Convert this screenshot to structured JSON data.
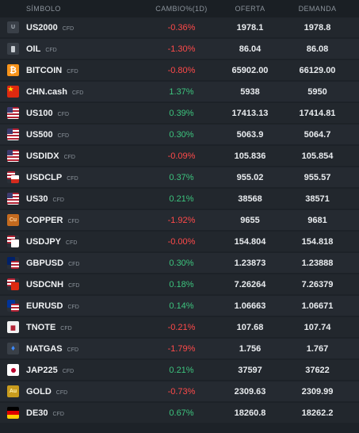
{
  "header": {
    "symbol": "SÍMBOLO",
    "change": "CAMBIO%(1D)",
    "bid": "OFERTA",
    "ask": "DEMANDA"
  },
  "rows": [
    {
      "symbol": "US2000",
      "tag": "CFD",
      "change": "-0.36%",
      "direction": "neg",
      "bid": "1978.1",
      "ask": "1978.8",
      "icon": "index-icon"
    },
    {
      "symbol": "OIL",
      "tag": "CFD",
      "change": "-1.30%",
      "direction": "neg",
      "bid": "86.04",
      "ask": "86.08",
      "icon": "oil-icon"
    },
    {
      "symbol": "BITCOIN",
      "tag": "CFD",
      "change": "-0.80%",
      "direction": "neg",
      "bid": "65902.00",
      "ask": "66129.00",
      "icon": "bitcoin-icon"
    },
    {
      "symbol": "CHN.cash",
      "tag": "CFD",
      "change": "1.37%",
      "direction": "pos",
      "bid": "5938",
      "ask": "5950",
      "icon": "china-flag-icon"
    },
    {
      "symbol": "US100",
      "tag": "CFD",
      "change": "0.39%",
      "direction": "pos",
      "bid": "17413.13",
      "ask": "17414.81",
      "icon": "us-flag-icon"
    },
    {
      "symbol": "US500",
      "tag": "CFD",
      "change": "0.30%",
      "direction": "pos",
      "bid": "5063.9",
      "ask": "5064.7",
      "icon": "us-flag-icon"
    },
    {
      "symbol": "USDIDX",
      "tag": "CFD",
      "change": "-0.09%",
      "direction": "neg",
      "bid": "105.836",
      "ask": "105.854",
      "icon": "us-flag-icon"
    },
    {
      "symbol": "USDCLP",
      "tag": "CFD",
      "change": "0.37%",
      "direction": "pos",
      "bid": "955.02",
      "ask": "955.57",
      "icon": "usd-clp-flags-icon"
    },
    {
      "symbol": "US30",
      "tag": "CFD",
      "change": "0.21%",
      "direction": "pos",
      "bid": "38568",
      "ask": "38571",
      "icon": "us-flag-icon"
    },
    {
      "symbol": "COPPER",
      "tag": "CFD",
      "change": "-1.92%",
      "direction": "neg",
      "bid": "9655",
      "ask": "9681",
      "icon": "copper-icon"
    },
    {
      "symbol": "USDJPY",
      "tag": "CFD",
      "change": "-0.00%",
      "direction": "neg",
      "bid": "154.804",
      "ask": "154.818",
      "icon": "usd-jpy-flags-icon"
    },
    {
      "symbol": "GBPUSD",
      "tag": "CFD",
      "change": "0.30%",
      "direction": "pos",
      "bid": "1.23873",
      "ask": "1.23888",
      "icon": "gbp-usd-flags-icon"
    },
    {
      "symbol": "USDCNH",
      "tag": "CFD",
      "change": "0.18%",
      "direction": "pos",
      "bid": "7.26264",
      "ask": "7.26379",
      "icon": "usd-cnh-flags-icon"
    },
    {
      "symbol": "EURUSD",
      "tag": "CFD",
      "change": "0.14%",
      "direction": "pos",
      "bid": "1.06663",
      "ask": "1.06671",
      "icon": "eur-usd-flags-icon"
    },
    {
      "symbol": "TNOTE",
      "tag": "CFD",
      "change": "-0.21%",
      "direction": "neg",
      "bid": "107.68",
      "ask": "107.74",
      "icon": "tnote-icon"
    },
    {
      "symbol": "NATGAS",
      "tag": "CFD",
      "change": "-1.79%",
      "direction": "neg",
      "bid": "1.756",
      "ask": "1.767",
      "icon": "flame-icon"
    },
    {
      "symbol": "JAP225",
      "tag": "CFD",
      "change": "0.21%",
      "direction": "pos",
      "bid": "37597",
      "ask": "37622",
      "icon": "japan-flag-icon"
    },
    {
      "symbol": "GOLD",
      "tag": "CFD",
      "change": "-0.73%",
      "direction": "neg",
      "bid": "2309.63",
      "ask": "2309.99",
      "icon": "gold-icon"
    },
    {
      "symbol": "DE30",
      "tag": "CFD",
      "change": "0.67%",
      "direction": "pos",
      "bid": "18260.8",
      "ask": "18262.2",
      "icon": "germany-flag-icon"
    }
  ],
  "icon_glyphs": {
    "index": "U",
    "bitcoin": "₿",
    "copper": "Cu",
    "gold": "Au",
    "flame": "♦",
    "china_star": "★",
    "tnote": "▆"
  },
  "colors": {
    "positive": "#3dc47e",
    "negative": "#ff4a4a"
  }
}
